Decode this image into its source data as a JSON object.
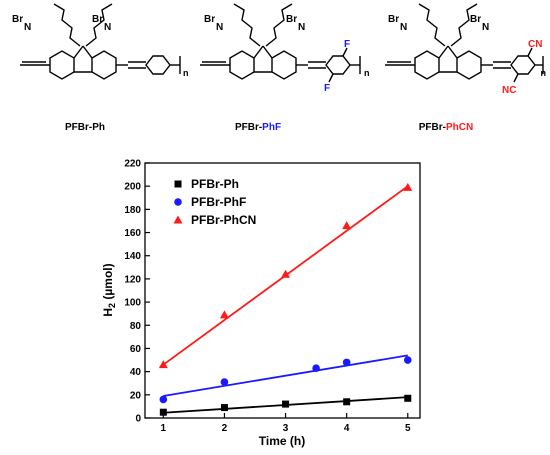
{
  "structures": {
    "items": [
      {
        "base": "PFBr-",
        "suffix": "Ph",
        "suffix_color": "#000000",
        "substituent": "",
        "substituent_color": "#000000"
      },
      {
        "base": "PFBr-",
        "suffix": "PhF",
        "suffix_color": "#1a1aff",
        "substituent": "F",
        "substituent_color": "#1a1aff"
      },
      {
        "base": "PFBr-",
        "suffix": "PhCN",
        "suffix_color": "#ff1a1a",
        "substituent": "CN",
        "substituent_color": "#ff1a1a"
      }
    ],
    "labels": {
      "bromide": "Br",
      "nitrogen": "N",
      "nc": "NC",
      "repeat": "n"
    }
  },
  "chart_data": {
    "type": "scatter",
    "xlabel": "Time (h)",
    "ylabel": "H2 (µmol)",
    "ylabel_main": "H",
    "ylabel_sub": "2",
    "ylabel_unit": " (µmol)",
    "xlim": [
      1,
      5
    ],
    "ylim": [
      0,
      220
    ],
    "xticks": [
      1,
      2,
      3,
      4,
      5
    ],
    "yticks": [
      0,
      20,
      40,
      60,
      80,
      100,
      120,
      140,
      160,
      180,
      200,
      220
    ],
    "grid": false,
    "legend_position": "top-left",
    "series": [
      {
        "name": "PFBr-Ph",
        "marker": "square",
        "color": "#000000",
        "x": [
          1,
          2,
          3,
          4,
          5
        ],
        "y": [
          5,
          9,
          12,
          14,
          17
        ],
        "fit": {
          "x": [
            1,
            5
          ],
          "y": [
            4.5,
            18
          ]
        }
      },
      {
        "name": "PFBr-PhF",
        "marker": "circle",
        "color": "#1a1aff",
        "x": [
          1,
          2,
          3.5,
          4,
          5
        ],
        "y": [
          16,
          31,
          43,
          48,
          50
        ],
        "fit": {
          "x": [
            1,
            5
          ],
          "y": [
            19,
            54
          ]
        }
      },
      {
        "name": "PFBr-PhCN",
        "marker": "triangle",
        "color": "#ff1a1a",
        "x": [
          1,
          2,
          3,
          4,
          5
        ],
        "y": [
          46,
          89,
          124,
          166,
          199
        ],
        "fit": {
          "x": [
            1,
            5
          ],
          "y": [
            46,
            200
          ]
        }
      }
    ]
  }
}
